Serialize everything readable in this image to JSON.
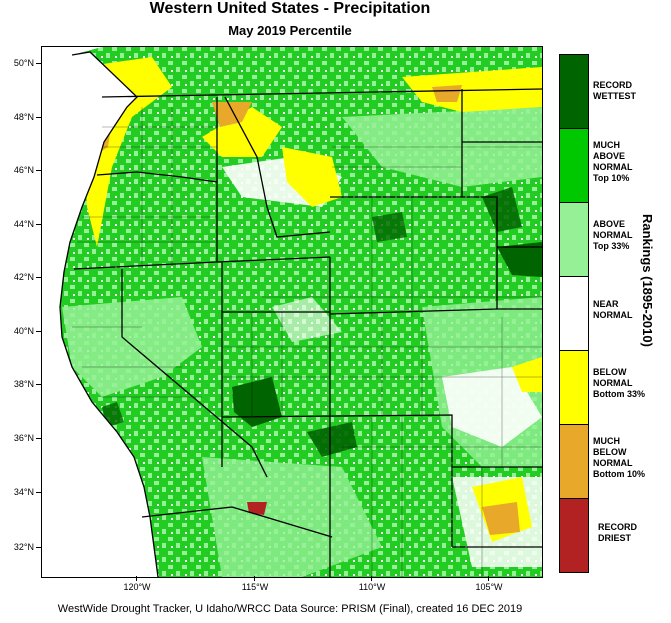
{
  "title": "Western United States - Precipitation",
  "subtitle": "May 2019 Percentile",
  "y_axis": {
    "ticks": [
      {
        "label": "50°N",
        "lat": 50
      },
      {
        "label": "48°N",
        "lat": 48
      },
      {
        "label": "46°N",
        "lat": 46
      },
      {
        "label": "44°N",
        "lat": 44
      },
      {
        "label": "42°N",
        "lat": 42
      },
      {
        "label": "40°N",
        "lat": 40
      },
      {
        "label": "38°N",
        "lat": 38
      },
      {
        "label": "36°N",
        "lat": 36
      },
      {
        "label": "34°N",
        "lat": 34
      },
      {
        "label": "32°N",
        "lat": 32
      }
    ]
  },
  "x_axis": {
    "ticks": [
      {
        "label": "120°W",
        "lon": -120
      },
      {
        "label": "115°W",
        "lon": -115
      },
      {
        "label": "110°W",
        "lon": -110
      },
      {
        "label": "105°W",
        "lon": -105
      }
    ]
  },
  "legend": {
    "title": "Rankings (1895-2010)",
    "items": [
      {
        "label": "RECORD WETTEST",
        "color": "#006400"
      },
      {
        "label": "MUCH ABOVE NORMAL Top 10%",
        "color": "#00c800"
      },
      {
        "label": "ABOVE NORMAL Top 33%",
        "color": "#96f096"
      },
      {
        "label": "NEAR NORMAL",
        "color": "#ffffff"
      },
      {
        "label": "BELOW NORMAL Bottom 33%",
        "color": "#ffff00"
      },
      {
        "label": "MUCH BELOW NORMAL Bottom 10%",
        "color": "#e8a82a"
      },
      {
        "label": "RECORD DRIEST",
        "color": "#b22222"
      }
    ]
  },
  "footer": "WestWide Drought Tracker, U Idaho/WRCC Data Source: PRISM (Final), created 16 DEC 2019"
}
